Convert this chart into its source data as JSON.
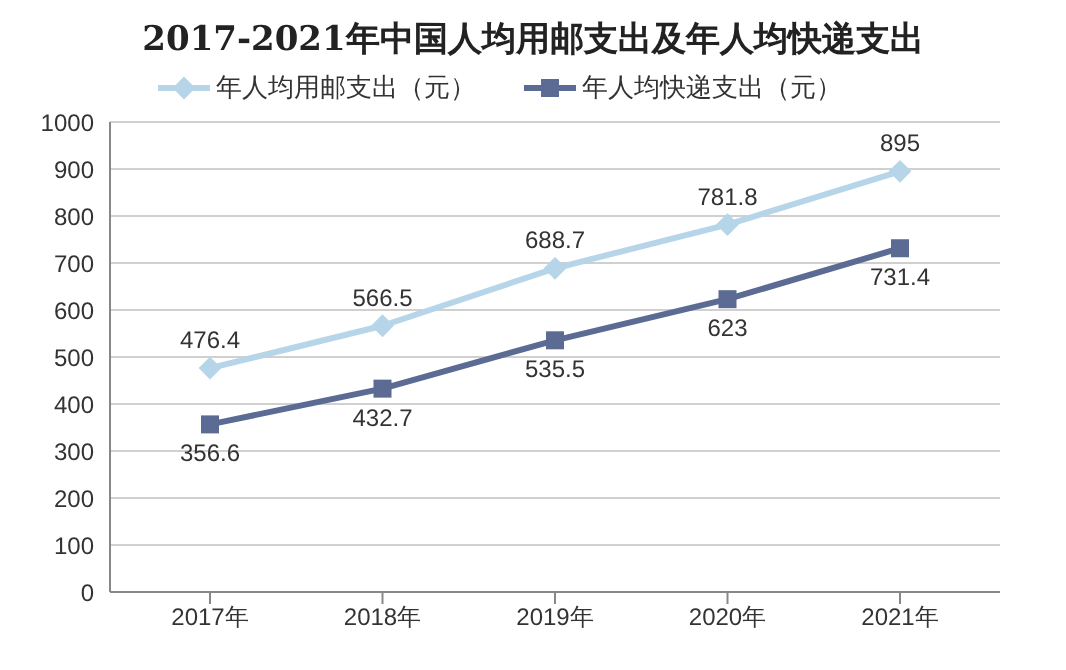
{
  "chart_data": {
    "type": "line",
    "title": "2017-2021年中国人均用邮支出及年人均快递支出",
    "categories": [
      "2017年",
      "2018年",
      "2019年",
      "2020年",
      "2021年"
    ],
    "series": [
      {
        "name": "年人均用邮支出（元）",
        "color": "#b7d5e8",
        "marker": "diamond",
        "values": [
          476.4,
          566.5,
          688.7,
          781.8,
          895
        ]
      },
      {
        "name": "年人均快递支出（元）",
        "color": "#5b6b93",
        "marker": "square",
        "values": [
          356.6,
          432.7,
          535.5,
          623,
          731.4
        ]
      }
    ],
    "ylim": [
      0,
      1000
    ],
    "yticks": [
      0,
      100,
      200,
      300,
      400,
      500,
      600,
      700,
      800,
      900,
      1000
    ],
    "grid": "y",
    "legend": "top",
    "data_labels": true,
    "line_style": "solid"
  }
}
